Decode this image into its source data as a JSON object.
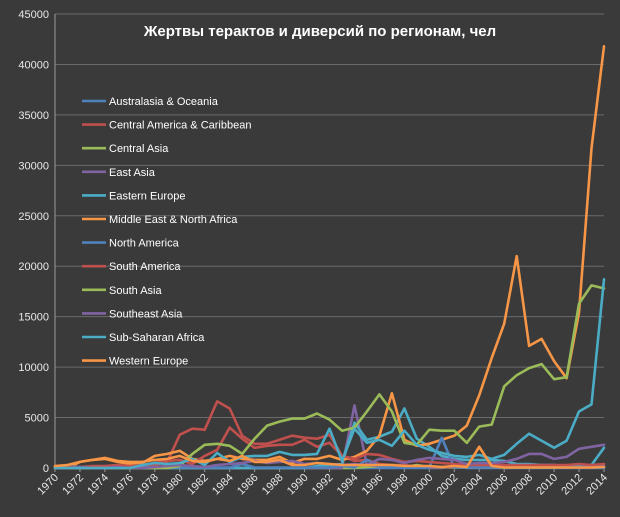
{
  "chart_data": {
    "type": "line",
    "title": "Жертвы терактов и диверсий по регионам, чел",
    "xlabel": "",
    "ylabel": "",
    "ylim": [
      0,
      45000
    ],
    "yticks": [
      0,
      5000,
      10000,
      15000,
      20000,
      25000,
      30000,
      35000,
      40000,
      45000
    ],
    "ytick_labels": [
      "0",
      "5000",
      "10000",
      "15000",
      "20000",
      "25000",
      "30000",
      "35000",
      "40000",
      "45000"
    ],
    "xlim": [
      1970,
      2014
    ],
    "xticks": [
      1970,
      1972,
      1974,
      1976,
      1978,
      1980,
      1982,
      1984,
      1986,
      1988,
      1990,
      1992,
      1994,
      1996,
      1998,
      2000,
      2002,
      2004,
      2006,
      2008,
      2010,
      2012,
      2014
    ],
    "xtick_labels": [
      "1970",
      "1972",
      "1974",
      "1976",
      "1978",
      "1980",
      "1982",
      "1984",
      "1986",
      "1988",
      "1990",
      "1992",
      "1994",
      "1996",
      "1998",
      "2000",
      "2002",
      "2004",
      "2006",
      "2008",
      "2010",
      "2012",
      "2014"
    ],
    "grid": true,
    "legend_position": "upper-left",
    "background": "#3a3a3a",
    "years": [
      1970,
      1971,
      1972,
      1973,
      1974,
      1975,
      1976,
      1977,
      1978,
      1979,
      1980,
      1981,
      1982,
      1983,
      1984,
      1985,
      1986,
      1987,
      1988,
      1989,
      1990,
      1991,
      1992,
      1993,
      1994,
      1995,
      1996,
      1997,
      1998,
      1999,
      2000,
      2001,
      2002,
      2003,
      2004,
      2005,
      2006,
      2007,
      2008,
      2009,
      2010,
      2011,
      2012,
      2013,
      2014
    ],
    "series": [
      {
        "name": "Australasia & Oceania",
        "color": "#4f81bd",
        "values": [
          0,
          0,
          0,
          0,
          0,
          0,
          0,
          0,
          0,
          0,
          0,
          0,
          0,
          0,
          0,
          0,
          0,
          0,
          0,
          0,
          0,
          0,
          0,
          0,
          0,
          0,
          0,
          0,
          0,
          0,
          0,
          0,
          200,
          0,
          0,
          0,
          0,
          0,
          0,
          0,
          0,
          0,
          0,
          0,
          0
        ]
      },
      {
        "name": "Central America & Caribbean",
        "color": "#c0504d",
        "values": [
          0,
          0,
          50,
          100,
          100,
          150,
          200,
          200,
          300,
          600,
          3300,
          3900,
          3800,
          6600,
          5900,
          3200,
          2400,
          2400,
          2800,
          3200,
          3000,
          2900,
          3300,
          1200,
          700,
          800,
          400,
          300,
          300,
          100,
          50,
          50,
          50,
          50,
          50,
          50,
          50,
          50,
          50,
          50,
          50,
          50,
          50,
          50,
          100
        ]
      },
      {
        "name": "Central Asia",
        "color": "#9bbb59",
        "values": [
          0,
          0,
          0,
          0,
          0,
          0,
          0,
          0,
          0,
          0,
          0,
          0,
          0,
          0,
          0,
          0,
          0,
          0,
          0,
          0,
          0,
          0,
          0,
          0,
          0,
          100,
          200,
          100,
          100,
          300,
          100,
          100,
          50,
          50,
          50,
          50,
          50,
          50,
          50,
          50,
          50,
          100,
          200,
          100,
          100
        ]
      },
      {
        "name": "East Asia",
        "color": "#8064a2",
        "values": [
          0,
          0,
          0,
          0,
          0,
          0,
          0,
          0,
          0,
          0,
          0,
          0,
          0,
          0,
          0,
          0,
          0,
          0,
          0,
          0,
          0,
          0,
          0,
          0,
          6200,
          300,
          200,
          100,
          100,
          100,
          100,
          100,
          100,
          100,
          100,
          100,
          100,
          100,
          100,
          300,
          300,
          100,
          100,
          100,
          300
        ]
      },
      {
        "name": "Eastern Europe",
        "color": "#4bacc6",
        "values": [
          0,
          0,
          0,
          0,
          0,
          0,
          0,
          0,
          0,
          0,
          0,
          0,
          0,
          0,
          0,
          0,
          0,
          0,
          0,
          0,
          0,
          200,
          300,
          400,
          4500,
          2800,
          3100,
          3600,
          5900,
          2900,
          2100,
          1200,
          900,
          800,
          800,
          800,
          700,
          400,
          400,
          300,
          300,
          200,
          300,
          300,
          2000
        ]
      },
      {
        "name": "Middle East & North Africa",
        "color": "#f79646",
        "values": [
          200,
          0,
          600,
          800,
          900,
          600,
          400,
          500,
          1200,
          1400,
          1700,
          900,
          700,
          900,
          1200,
          900,
          800,
          800,
          1100,
          500,
          900,
          900,
          1200,
          800,
          1100,
          1700,
          3200,
          7400,
          2800,
          2200,
          2400,
          2800,
          3200,
          4200,
          7200,
          10900,
          14300,
          21000,
          12100,
          12800,
          10600,
          8900,
          15400,
          31700,
          41800
        ]
      },
      {
        "name": "North America",
        "color": "#4f81bd",
        "values": [
          100,
          200,
          100,
          100,
          100,
          100,
          100,
          100,
          100,
          50,
          50,
          50,
          50,
          50,
          50,
          400,
          50,
          50,
          50,
          50,
          50,
          50,
          50,
          200,
          50,
          800,
          200,
          50,
          50,
          50,
          50,
          3000,
          50,
          50,
          50,
          50,
          50,
          50,
          50,
          50,
          50,
          50,
          100,
          100,
          100
        ]
      },
      {
        "name": "South America",
        "color": "#c0504d",
        "values": [
          0,
          100,
          100,
          200,
          200,
          300,
          200,
          300,
          500,
          700,
          800,
          400,
          1200,
          1800,
          4000,
          2900,
          2000,
          2200,
          2300,
          2300,
          2800,
          2100,
          2500,
          1200,
          900,
          1400,
          1300,
          900,
          600,
          700,
          600,
          500,
          400,
          300,
          300,
          300,
          300,
          300,
          300,
          300,
          300,
          300,
          400,
          300,
          400
        ]
      },
      {
        "name": "South Asia",
        "color": "#9bbb59",
        "values": [
          0,
          0,
          0,
          0,
          0,
          0,
          0,
          0,
          0,
          0,
          200,
          1400,
          2300,
          2400,
          2200,
          1400,
          2900,
          4200,
          4600,
          4900,
          4900,
          5400,
          4800,
          3700,
          4000,
          5600,
          7300,
          5600,
          2500,
          2300,
          3800,
          3700,
          3700,
          2500,
          4100,
          4300,
          8100,
          9200,
          9900,
          10300,
          8800,
          9000,
          16300,
          18100,
          17800
        ]
      },
      {
        "name": "Southeast Asia",
        "color": "#8064a2",
        "values": [
          0,
          0,
          100,
          0,
          0,
          100,
          0,
          0,
          100,
          200,
          300,
          200,
          100,
          300,
          400,
          500,
          700,
          500,
          600,
          700,
          400,
          500,
          400,
          300,
          400,
          300,
          900,
          800,
          500,
          800,
          1000,
          900,
          800,
          400,
          500,
          500,
          600,
          900,
          1400,
          1400,
          900,
          1100,
          1900,
          2100,
          2300
        ]
      },
      {
        "name": "Sub-Saharan Africa",
        "color": "#4bacc6",
        "values": [
          0,
          0,
          0,
          0,
          0,
          0,
          0,
          300,
          500,
          400,
          500,
          900,
          300,
          1500,
          600,
          1100,
          1200,
          1200,
          1600,
          1300,
          1300,
          1400,
          3900,
          700,
          3900,
          2500,
          2800,
          2200,
          3700,
          2300,
          1800,
          1500,
          1200,
          1100,
          1300,
          900,
          1300,
          2400,
          3400,
          2700,
          2000,
          2700,
          5600,
          6300,
          18700
        ]
      },
      {
        "name": "Western Europe",
        "color": "#f79646",
        "values": [
          200,
          300,
          600,
          800,
          1000,
          700,
          600,
          600,
          800,
          900,
          1200,
          700,
          600,
          900,
          700,
          1200,
          600,
          600,
          800,
          300,
          300,
          500,
          400,
          300,
          300,
          300,
          300,
          300,
          200,
          200,
          200,
          100,
          200,
          100,
          2100,
          200,
          50,
          50,
          50,
          50,
          50,
          50,
          50,
          50,
          100
        ]
      }
    ]
  }
}
